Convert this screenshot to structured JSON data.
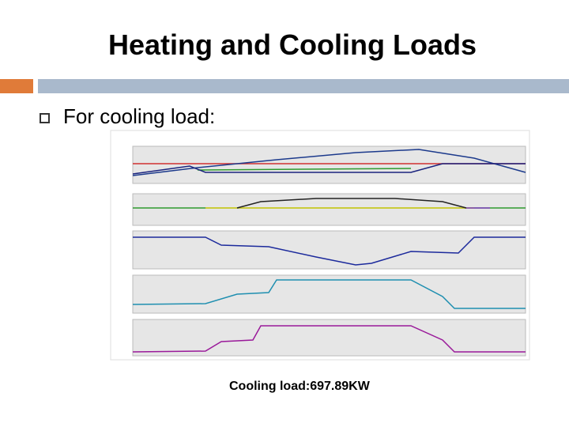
{
  "header": {
    "title": "Heating and Cooling Loads"
  },
  "bullet": {
    "text": "For cooling load:"
  },
  "caption": {
    "text": "Cooling load:697.89KW"
  }
}
